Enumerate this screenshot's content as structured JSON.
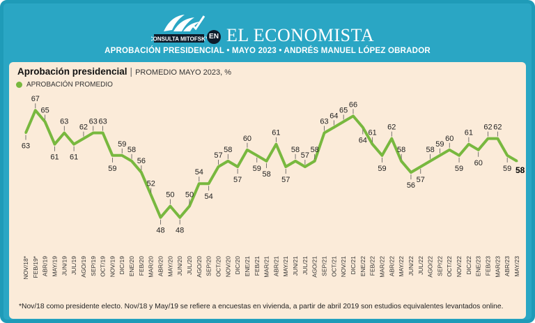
{
  "brand": {
    "logo_text": "CONSULTA MITOFSKY",
    "badge": "EN",
    "name": "EL ECONOMISTA"
  },
  "subtitle": "APROBACIÓN PRESIDENCIAL • MAYO 2023 • ANDRÉS MANUEL LÓPEZ OBRADOR",
  "colors": {
    "header": "#2aa6c4",
    "panel": "#fbebd9",
    "line": "#78b83f"
  },
  "chart_data": {
    "type": "line",
    "title": "Aprobación presidencial",
    "subtitle": "PROMEDIO MAYO 2023, %",
    "legend": [
      "APROBACIÓN PROMEDIO"
    ],
    "categories": [
      "NOV/18*",
      "FEB/19*",
      "ABR/19",
      "MAY/19",
      "JUN/19",
      "JUL/19",
      "AGO/19",
      "SEP/19",
      "OCT/19",
      "NOV/19",
      "DIC/19",
      "ENE/20",
      "FEB/20",
      "MAR/20",
      "ABR/20",
      "MAY/20",
      "JUN/20",
      "JUL/20",
      "AGO/20",
      "SEP/20",
      "OCT/20",
      "NOV/20",
      "DIC/20",
      "ENE/21",
      "FEB/21",
      "MAR/21",
      "ABR/21",
      "MAY/21",
      "JUN/21",
      "JUL/21",
      "AGO/21",
      "SEP/21",
      "OCT/21",
      "NOV/21",
      "DIC/21",
      "ENE/22",
      "FEB/22",
      "MAR/22",
      "ABR/22",
      "MAY/22",
      "JUN/22",
      "JUL/22",
      "AGO/22",
      "SEP/22",
      "OCT/22",
      "NOV/22",
      "DIC/22",
      "ENE/23",
      "FEB/23",
      "MAR/23",
      "ABR/23",
      "MAY/23"
    ],
    "series": [
      {
        "name": "APROBACIÓN PROMEDIO",
        "values": [
          63,
          67,
          65,
          61,
          63,
          61,
          62,
          63,
          63,
          59,
          59,
          58,
          56,
          52,
          48,
          50,
          48,
          50,
          54,
          54,
          57,
          58,
          57,
          60,
          59,
          58,
          61,
          57,
          58,
          57,
          58,
          63,
          64,
          65,
          66,
          64,
          61,
          59,
          62,
          58,
          56,
          57,
          58,
          59,
          60,
          59,
          61,
          60,
          62,
          62,
          59,
          58
        ]
      }
    ],
    "label_positions": [
      "below",
      "above",
      "above",
      "below",
      "above",
      "below",
      "above",
      "above",
      "above",
      "below",
      "above",
      "above",
      "above",
      "above",
      "below",
      "above",
      "below",
      "above",
      "above",
      "below",
      "above",
      "above",
      "below",
      "above",
      "below",
      "below",
      "above",
      "below",
      "above",
      "above",
      "above",
      "above",
      "above",
      "above",
      "above",
      "below",
      "above",
      "below",
      "above",
      "above",
      "below",
      "below",
      "above",
      "above",
      "above",
      "below",
      "above",
      "below",
      "above",
      "above",
      "below",
      "right"
    ],
    "highlight_last": true,
    "ylim": [
      44,
      70
    ],
    "xlabel": "",
    "ylabel": ""
  },
  "footnote": "*Nov/18 como presidente electo. Nov/18 y May/19 se refiere a encuestas en vivienda, a partir de abril 2019 son estudios equivalentes levantados online."
}
